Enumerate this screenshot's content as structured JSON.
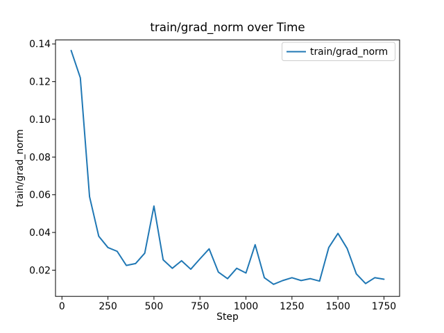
{
  "figure": {
    "background": "#ffffff",
    "axes_edge_color": "#000000",
    "legend_border_color": "#cccccc"
  },
  "chart_data": {
    "type": "line",
    "title": "train/grad_norm over Time",
    "xlabel": "Step",
    "ylabel": "train/grad_norm",
    "legend": [
      "train/grad_norm"
    ],
    "legend_position": "upper right",
    "grid": false,
    "line_color": "#1f77b4",
    "xlim": [
      -35,
      1835
    ],
    "ylim": [
      0.0061,
      0.1421
    ],
    "x_ticks": [
      0,
      250,
      500,
      750,
      1000,
      1250,
      1500,
      1750
    ],
    "y_ticks": [
      0.02,
      0.04,
      0.06,
      0.08,
      0.1,
      0.12,
      0.14
    ],
    "series": [
      {
        "name": "train/grad_norm",
        "x": [
          50,
          100,
          150,
          200,
          250,
          300,
          350,
          400,
          450,
          500,
          550,
          600,
          650,
          700,
          750,
          800,
          850,
          900,
          950,
          1000,
          1050,
          1100,
          1150,
          1200,
          1250,
          1300,
          1350,
          1400,
          1450,
          1500,
          1550,
          1600,
          1650,
          1700,
          1750
        ],
        "y": [
          0.1365,
          0.122,
          0.059,
          0.038,
          0.032,
          0.03,
          0.0225,
          0.0235,
          0.029,
          0.054,
          0.0255,
          0.021,
          0.025,
          0.0205,
          0.026,
          0.0313,
          0.019,
          0.0155,
          0.021,
          0.0185,
          0.0335,
          0.016,
          0.0125,
          0.0145,
          0.016,
          0.0145,
          0.0155,
          0.0142,
          0.032,
          0.0395,
          0.0315,
          0.018,
          0.0129,
          0.016,
          0.0152
        ]
      }
    ]
  }
}
